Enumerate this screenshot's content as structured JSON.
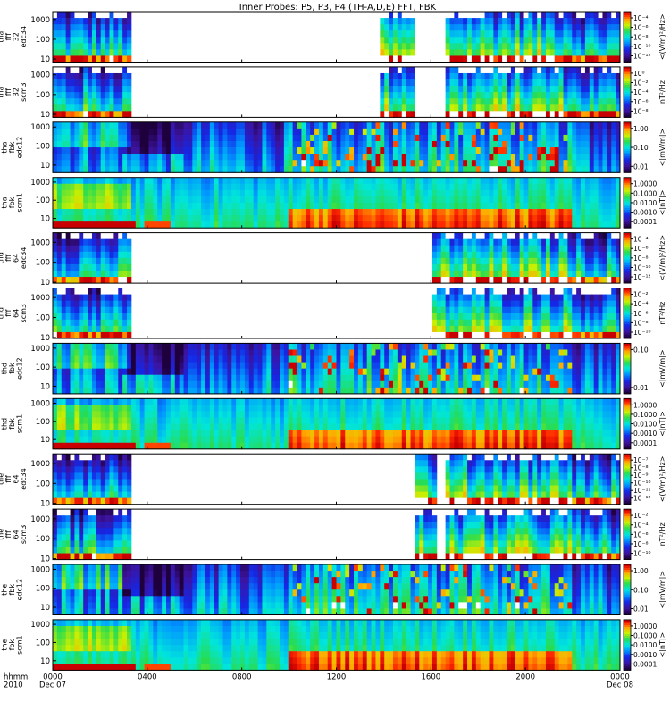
{
  "title": "Inner Probes: P5, P3, P4 (TH-A,D,E) FFT, FBK",
  "colors": {
    "frame": "#000000",
    "background": "#ffffff"
  },
  "chart_data": {
    "type": "heatmap",
    "title": "Inner Probes: P5, P3, P4 (TH-A,D,E) FFT, FBK",
    "x_ticks": [
      "0000",
      "0400",
      "0800",
      "1200",
      "1600",
      "2000",
      "0000"
    ],
    "x_tick_hours": [
      0,
      4,
      8,
      12,
      16,
      20,
      24
    ],
    "x_date_labels": [
      {
        "hour": 0,
        "label": "Dec 07"
      },
      {
        "hour": 24,
        "label": "Dec 08"
      }
    ],
    "x_axis_caption": [
      "hhmm",
      "2010"
    ],
    "xlim_hours": [
      0,
      24
    ],
    "y_scale": "log",
    "colormap": "rainbow",
    "panels": [
      {
        "label": [
          "tha",
          "fff",
          "32",
          "edc34"
        ],
        "ylim": [
          7,
          2500
        ],
        "y_ticks": [
          "1000",
          "100",
          "10"
        ],
        "cbar_unit": "<(V/m)²/Hz>",
        "cbar_ticks": [
          "10⁻⁴",
          "10⁻⁶",
          "10⁻⁸",
          "10⁻¹⁰",
          "10⁻¹²"
        ],
        "kind": "fff",
        "intervals": [
          [
            0,
            3.3
          ],
          [
            13.9,
            15.3
          ],
          [
            16.7,
            24
          ]
        ]
      },
      {
        "label": [
          "tha",
          "fff",
          "32",
          "scm3"
        ],
        "ylim": [
          7,
          2500
        ],
        "y_ticks": [
          "1000",
          "100",
          "10"
        ],
        "cbar_unit": "nT²/Hz",
        "cbar_ticks": [
          "10⁰",
          "10⁻²",
          "10⁻⁴",
          "10⁻⁶",
          "10⁻⁸"
        ],
        "kind": "fff",
        "intervals": [
          [
            0,
            3.3
          ],
          [
            13.9,
            15.3
          ],
          [
            16.7,
            24
          ]
        ]
      },
      {
        "label": [
          "tha",
          "fbk",
          "edc12"
        ],
        "ylim": [
          4,
          1800
        ],
        "y_ticks": [
          "1000",
          "100",
          "10"
        ],
        "cbar_unit": "<|mV/m|>",
        "cbar_ticks": [
          "1.00",
          "0.10",
          "0.01"
        ],
        "kind": "fbk",
        "intervals": [
          [
            0,
            24
          ]
        ]
      },
      {
        "label": [
          "tha",
          "fbk",
          "scm1"
        ],
        "ylim": [
          3,
          1800
        ],
        "y_ticks": [
          "1000",
          "100",
          "10"
        ],
        "cbar_unit": "<|nT|>",
        "cbar_ticks": [
          "1.0000",
          "0.1000",
          "0.0100",
          "0.0010",
          "0.0001"
        ],
        "kind": "scm",
        "intervals": [
          [
            0,
            24
          ]
        ]
      },
      {
        "label": [
          "thd",
          "fff",
          "64",
          "edc34"
        ],
        "ylim": [
          9,
          3000
        ],
        "y_ticks": [
          "1000",
          "100",
          "10"
        ],
        "cbar_unit": "<(V/m)²/Hz>",
        "cbar_ticks": [
          "10⁻⁴",
          "10⁻⁶",
          "10⁻⁸",
          "10⁻¹⁰",
          "10⁻¹²"
        ],
        "kind": "fff",
        "intervals": [
          [
            0,
            3.3
          ],
          [
            16.0,
            24
          ]
        ]
      },
      {
        "label": [
          "thd",
          "fff",
          "64",
          "scm3"
        ],
        "ylim": [
          9,
          3000
        ],
        "y_ticks": [
          "1000",
          "100",
          "10"
        ],
        "cbar_unit": "nT²/Hz",
        "cbar_ticks": [
          "10⁻²",
          "10⁻⁴",
          "10⁻⁶",
          "10⁻⁸",
          "10⁻¹⁰"
        ],
        "kind": "fff",
        "intervals": [
          [
            0,
            3.3
          ],
          [
            16.0,
            24
          ]
        ]
      },
      {
        "label": [
          "thd",
          "fbk",
          "edc12"
        ],
        "ylim": [
          4,
          1800
        ],
        "y_ticks": [
          "1000",
          "100",
          "10"
        ],
        "cbar_unit": "<|mV/m|>",
        "cbar_ticks": [
          "0.10",
          "0.01"
        ],
        "kind": "fbk",
        "intervals": [
          [
            0,
            24
          ]
        ]
      },
      {
        "label": [
          "thd",
          "fbk",
          "scm1"
        ],
        "ylim": [
          3,
          1800
        ],
        "y_ticks": [
          "1000",
          "100",
          "10"
        ],
        "cbar_unit": "<|nT|>",
        "cbar_ticks": [
          "1.0000",
          "0.1000",
          "0.0100",
          "0.0010",
          "0.0001"
        ],
        "kind": "scm",
        "intervals": [
          [
            0,
            24
          ]
        ]
      },
      {
        "label": [
          "the",
          "fff",
          "64",
          "edc34"
        ],
        "ylim": [
          9,
          3000
        ],
        "y_ticks": [
          "1000",
          "100",
          "10"
        ],
        "cbar_unit": "<(V/m)²/Hz>",
        "cbar_ticks": [
          "10⁻⁷",
          "10⁻⁸",
          "10⁻⁹",
          "10⁻¹⁰",
          "10⁻¹¹",
          "10⁻¹²"
        ],
        "kind": "fff",
        "intervals": [
          [
            0,
            3.3
          ],
          [
            15.4,
            16.2
          ],
          [
            16.6,
            24
          ]
        ]
      },
      {
        "label": [
          "the",
          "fff",
          "64",
          "scm3"
        ],
        "ylim": [
          9,
          3000
        ],
        "y_ticks": [
          "1000",
          "100",
          "10"
        ],
        "cbar_unit": "nT²/Hz",
        "cbar_ticks": [
          "10⁻²",
          "10⁻⁴",
          "10⁻⁶",
          "10⁻⁸",
          "10⁻¹⁰"
        ],
        "kind": "fff",
        "intervals": [
          [
            0,
            3.3
          ],
          [
            15.4,
            16.2
          ],
          [
            16.6,
            24
          ]
        ]
      },
      {
        "label": [
          "the",
          "fbk",
          "edc12"
        ],
        "ylim": [
          4,
          1800
        ],
        "y_ticks": [
          "1000",
          "100",
          "10"
        ],
        "cbar_unit": "<|mV/m|>",
        "cbar_ticks": [
          "1.00",
          "0.10",
          "0.01"
        ],
        "kind": "fbk",
        "intervals": [
          [
            0,
            24
          ]
        ]
      },
      {
        "label": [
          "the",
          "fbk",
          "scm1"
        ],
        "ylim": [
          3,
          1800
        ],
        "y_ticks": [
          "1000",
          "100",
          "10"
        ],
        "cbar_unit": "<|nT|>",
        "cbar_ticks": [
          "1.0000",
          "0.1000",
          "0.0100",
          "0.0010",
          "0.0001"
        ],
        "kind": "scm",
        "intervals": [
          [
            0,
            24
          ]
        ]
      }
    ]
  }
}
